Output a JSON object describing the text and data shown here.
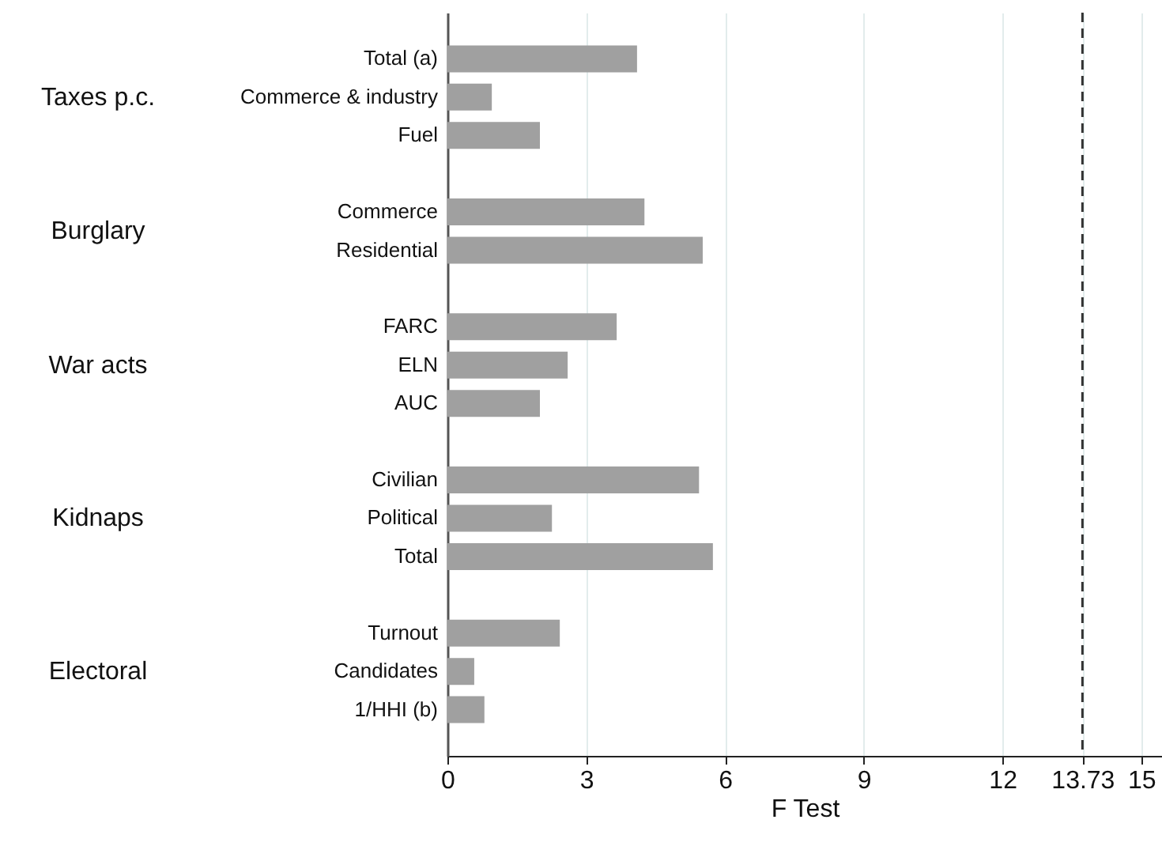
{
  "chart_data": {
    "type": "bar",
    "orientation": "horizontal",
    "categories": [
      "Total (a)",
      "Commerce & industry",
      "Fuel",
      null,
      "Commerce",
      "Residential",
      null,
      "FARC",
      "ELN",
      "AUC",
      null,
      "Civilian",
      "Political",
      "Total",
      null,
      "Turnout",
      "Candidates",
      "1/HHI (b)"
    ],
    "values": [
      4.1,
      0.96,
      2.0,
      null,
      4.26,
      5.52,
      null,
      3.66,
      2.6,
      2.0,
      null,
      5.44,
      2.26,
      5.74,
      null,
      2.43,
      0.58,
      0.8
    ],
    "color": "#a0a0a0",
    "xlabel": "F Test",
    "xlim": [
      0,
      15.45
    ],
    "xticks": [
      0,
      3,
      6,
      9,
      12,
      13.73,
      15
    ],
    "grid": "x",
    "ref_lines": [
      {
        "axis": "x",
        "value": 13.73,
        "color": "#333333",
        "line_style": "dashed"
      }
    ],
    "annotations": [
      "Taxes p.c.",
      "Burglary",
      "War acts",
      "Kidnaps",
      "Electoral"
    ]
  }
}
